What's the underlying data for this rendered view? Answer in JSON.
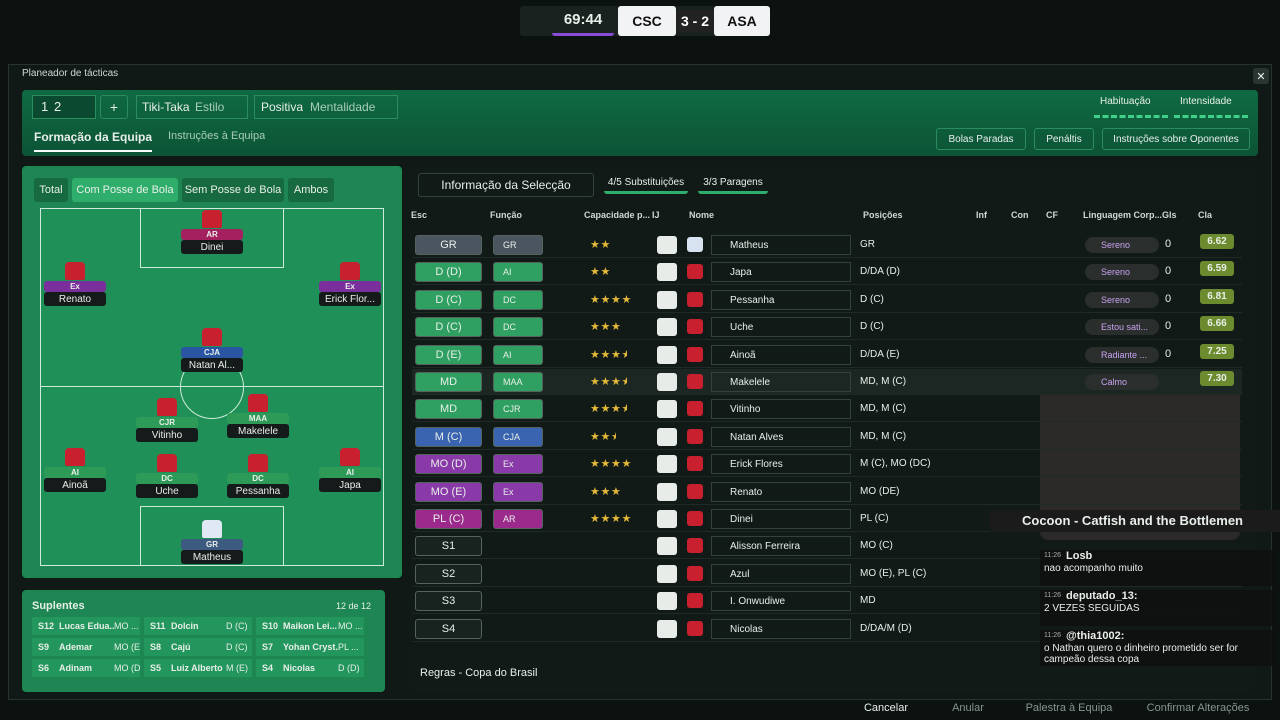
{
  "scoreboard": {
    "time": "69:44",
    "home": "CSC",
    "score": "3 - 2",
    "away": "ASA"
  },
  "panel_title": "Planeador de tácticas",
  "tactic": {
    "slots": [
      "1",
      "2"
    ],
    "add": "+",
    "style": "Tiki-Taka",
    "style_label": "Estilo",
    "mentality": "Positiva",
    "mentality_label": "Mentalidade",
    "meters": [
      "Habituação",
      "Intensidade"
    ]
  },
  "tabs": [
    "Formação da Equipa",
    "Instruções à Equipa"
  ],
  "header_buttons": [
    "Bolas Paradas",
    "Penáltis",
    "Instruções sobre Oponentes"
  ],
  "pitch_filters": [
    "Total",
    "Com Posse de Bola",
    "Sem Posse de Bola",
    "Ambos"
  ],
  "pitch_players": [
    {
      "role": "AR",
      "name": "Dinei"
    },
    {
      "role": "Ex",
      "name": "Renato"
    },
    {
      "role": "Ex",
      "name": "Erick Flor..."
    },
    {
      "role": "CJA",
      "name": "Natan Al..."
    },
    {
      "role": "CJR",
      "name": "Vitinho"
    },
    {
      "role": "MAA",
      "name": "Makelele"
    },
    {
      "role": "AI",
      "name": "Ainoã"
    },
    {
      "role": "DC",
      "name": "Uche"
    },
    {
      "role": "DC",
      "name": "Pessanha"
    },
    {
      "role": "AI",
      "name": "Japa"
    },
    {
      "role": "GR",
      "name": "Matheus"
    }
  ],
  "bench": {
    "title": "Suplentes",
    "count": "12 de 12",
    "players": [
      {
        "slot": "S12",
        "name": "Lucas Edua...",
        "position": "MO ..."
      },
      {
        "slot": "S11",
        "name": "Dolcin",
        "position": "D (C)"
      },
      {
        "slot": "S10",
        "name": "Maikon Lei...",
        "position": "MO ..."
      },
      {
        "slot": "S9",
        "name": "Ademar",
        "position": "MO (E)"
      },
      {
        "slot": "S8",
        "name": "Cajú",
        "position": "D (C)"
      },
      {
        "slot": "S7",
        "name": "Yohan Cryst...",
        "position": "PL ..."
      },
      {
        "slot": "S6",
        "name": "Adinam",
        "position": "MO (D)"
      },
      {
        "slot": "S5",
        "name": "Luiz Alberto",
        "position": "M (E)"
      },
      {
        "slot": "S4",
        "name": "Nicolas",
        "position": "D (D)"
      }
    ]
  },
  "toolbar": {
    "selection": "Informação da Selecção",
    "subs": "4/5 Substituições",
    "stops": "3/3 Paragens"
  },
  "table": {
    "headers": [
      "Esc",
      "Função",
      "Capacidade p...",
      "IJ",
      "Nome",
      "Posições",
      "Inf",
      "Con",
      "CF",
      "Linguagem Corp...",
      "Gls",
      "Cla"
    ],
    "rows": [
      {
        "slot": "GR",
        "role": "GR",
        "stars": 2,
        "name": "Matheus",
        "positions": "GR",
        "body": "Sereno",
        "goals": 0,
        "rating": "6.62"
      },
      {
        "slot": "D (D)",
        "role": "AI",
        "stars": 2,
        "name": "Japa",
        "positions": "D/DA (D)",
        "body": "Sereno",
        "goals": 0,
        "rating": "6.59"
      },
      {
        "slot": "D (C)",
        "role": "DC",
        "stars": 4,
        "name": "Pessanha",
        "positions": "D (C)",
        "body": "Sereno",
        "goals": 0,
        "rating": "6.81"
      },
      {
        "slot": "D (C)",
        "role": "DC",
        "stars": 3,
        "name": "Uche",
        "positions": "D (C)",
        "body": "Estou sati...",
        "goals": 0,
        "rating": "6.66"
      },
      {
        "slot": "D (E)",
        "role": "AI",
        "stars": 3.5,
        "name": "Ainoã",
        "positions": "D/DA (E)",
        "body": "Radiante ...",
        "goals": 0,
        "rating": "7.25"
      },
      {
        "slot": "MD",
        "role": "MAA",
        "stars": 3.5,
        "name": "Makelele",
        "positions": "MD, M (C)",
        "body": "Calmo",
        "goals": null,
        "rating": "7.30"
      },
      {
        "slot": "MD",
        "role": "CJR",
        "stars": 3.5,
        "name": "Vitinho",
        "positions": "MD, M (C)",
        "body": null,
        "goals": null,
        "rating": null
      },
      {
        "slot": "M (C)",
        "role": "CJA",
        "stars": 2.5,
        "name": "Natan Alves",
        "positions": "MD, M (C)",
        "body": null,
        "goals": null,
        "rating": null
      },
      {
        "slot": "MO (D)",
        "role": "Ex",
        "stars": 4,
        "name": "Erick Flores",
        "positions": "M (C), MO (DC)",
        "body": null,
        "goals": null,
        "rating": null
      },
      {
        "slot": "MO (E)",
        "role": "Ex",
        "stars": 3,
        "name": "Renato",
        "positions": "MO (DE)",
        "body": null,
        "goals": null,
        "rating": null
      },
      {
        "slot": "PL (C)",
        "role": "AR",
        "stars": 4,
        "name": "Dinei",
        "positions": "PL (C)",
        "body": null,
        "goals": null,
        "rating": null
      },
      {
        "slot": "S1",
        "role": null,
        "stars": null,
        "name": "Alisson Ferreira",
        "positions": "MO (C)",
        "body": null,
        "goals": null,
        "rating": null
      },
      {
        "slot": "S2",
        "role": null,
        "stars": null,
        "name": "Azul",
        "positions": "MO (E), PL (C)",
        "body": null,
        "goals": null,
        "rating": null
      },
      {
        "slot": "S3",
        "role": null,
        "stars": null,
        "name": "I. Onwudiwe",
        "positions": "MD",
        "body": null,
        "goals": null,
        "rating": null
      },
      {
        "slot": "S4",
        "role": null,
        "stars": null,
        "name": "Nicolas",
        "positions": "D/DA/M (D)",
        "body": null,
        "goals": null,
        "rating": null
      }
    ]
  },
  "rules": "Regras - Copa do Brasil",
  "footer_buttons": [
    "Cancelar",
    "Anular",
    "Palestra à Equipa",
    "Confirmar Alterações"
  ],
  "stream": {
    "song": "Cocoon - Catfish and the Bottlemen",
    "chat": [
      {
        "time": "11:26",
        "user": "Losb",
        "text": "nao acompanho muito"
      },
      {
        "time": "11:26",
        "user": "deputado_13:",
        "text": "2 VEZES SEGUIDAS"
      },
      {
        "time": "11:26",
        "user": "@thia1002:",
        "text": "o Nathan quero o dinheiro prometido ser for campeão dessa copa"
      }
    ]
  }
}
